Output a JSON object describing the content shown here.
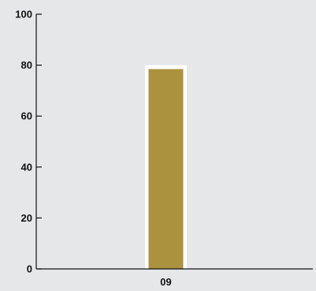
{
  "chart_data": {
    "type": "bar",
    "categories": [
      "09"
    ],
    "values": [
      80
    ],
    "ylim": [
      0,
      100
    ],
    "yticks": [
      0,
      20,
      40,
      60,
      80,
      100
    ],
    "ytick_labels": [
      "0",
      "20",
      "40",
      "60",
      "80",
      "100"
    ],
    "grid": false,
    "colors": {
      "background": "#e6e7e8",
      "bar_fill": "#ab923f",
      "bar_outline": "#ffffff",
      "axis": "#111111"
    }
  }
}
